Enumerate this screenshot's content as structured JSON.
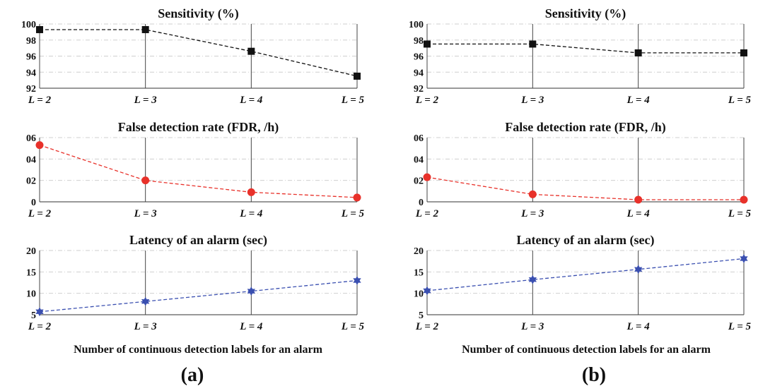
{
  "figure": {
    "panels": [
      {
        "label": "(a)",
        "xlabel": "Number of continuous detection labels for an alarm"
      },
      {
        "label": "(b)",
        "xlabel": "Number of continuous detection labels for an alarm"
      }
    ]
  },
  "chart_data": [
    {
      "type": "line",
      "panel": "(a)",
      "title": "Sensitivity (%)",
      "categories": [
        "L = 2",
        "L = 3",
        "L = 4",
        "L = 5"
      ],
      "values": [
        99.3,
        99.3,
        96.6,
        93.5
      ],
      "ylim": [
        92,
        100
      ],
      "yticks": [
        92,
        94,
        96,
        98,
        100
      ],
      "ytick_labels": [
        "92",
        "94",
        "96",
        "98",
        "100"
      ],
      "grid": true,
      "color": "#111111",
      "marker": "square",
      "line_style": "dashed"
    },
    {
      "type": "line",
      "panel": "(a)",
      "title": "False detection rate (FDR, /h)",
      "categories": [
        "L = 2",
        "L = 3",
        "L = 4",
        "L = 5"
      ],
      "values": [
        0.53,
        0.2,
        0.09,
        0.04
      ],
      "ylim": [
        0,
        0.6
      ],
      "yticks": [
        0,
        0.2,
        0.4,
        0.6
      ],
      "ytick_labels": [
        "0",
        "02",
        "04",
        "06"
      ],
      "grid": true,
      "color": "#e8312a",
      "marker": "circle",
      "line_style": "dashed"
    },
    {
      "type": "line",
      "panel": "(a)",
      "title": "Latency of an alarm (sec)",
      "categories": [
        "L = 2",
        "L = 3",
        "L = 4",
        "L = 5"
      ],
      "values": [
        5.7,
        8.1,
        10.5,
        13.0
      ],
      "ylim": [
        5,
        20
      ],
      "yticks": [
        5,
        10,
        15,
        20
      ],
      "ytick_labels": [
        "5",
        "10",
        "15",
        "20"
      ],
      "grid": true,
      "color": "#3a4fb0",
      "marker": "star",
      "line_style": "dashed"
    },
    {
      "type": "line",
      "panel": "(b)",
      "title": "Sensitivity (%)",
      "categories": [
        "L = 2",
        "L = 3",
        "L = 4",
        "L = 5"
      ],
      "values": [
        97.5,
        97.5,
        96.4,
        96.4
      ],
      "ylim": [
        92,
        100
      ],
      "yticks": [
        92,
        94,
        96,
        98,
        100
      ],
      "ytick_labels": [
        "92",
        "94",
        "96",
        "98",
        "100"
      ],
      "grid": true,
      "color": "#111111",
      "marker": "square",
      "line_style": "dashed"
    },
    {
      "type": "line",
      "panel": "(b)",
      "title": "False detection rate (FDR, /h)",
      "categories": [
        "L = 2",
        "L = 3",
        "L = 4",
        "L = 5"
      ],
      "values": [
        0.23,
        0.07,
        0.02,
        0.02
      ],
      "ylim": [
        0,
        0.6
      ],
      "yticks": [
        0,
        0.2,
        0.4,
        0.6
      ],
      "ytick_labels": [
        "0",
        "02",
        "04",
        "06"
      ],
      "grid": true,
      "color": "#e8312a",
      "marker": "circle",
      "line_style": "dashed"
    },
    {
      "type": "line",
      "panel": "(b)",
      "title": "Latency of an alarm (sec)",
      "categories": [
        "L = 2",
        "L = 3",
        "L = 4",
        "L = 5"
      ],
      "values": [
        10.6,
        13.2,
        15.6,
        18.1
      ],
      "ylim": [
        5,
        20
      ],
      "yticks": [
        5,
        10,
        15,
        20
      ],
      "ytick_labels": [
        "5",
        "10",
        "15",
        "20"
      ],
      "grid": true,
      "color": "#3a4fb0",
      "marker": "star",
      "line_style": "dashed"
    }
  ]
}
